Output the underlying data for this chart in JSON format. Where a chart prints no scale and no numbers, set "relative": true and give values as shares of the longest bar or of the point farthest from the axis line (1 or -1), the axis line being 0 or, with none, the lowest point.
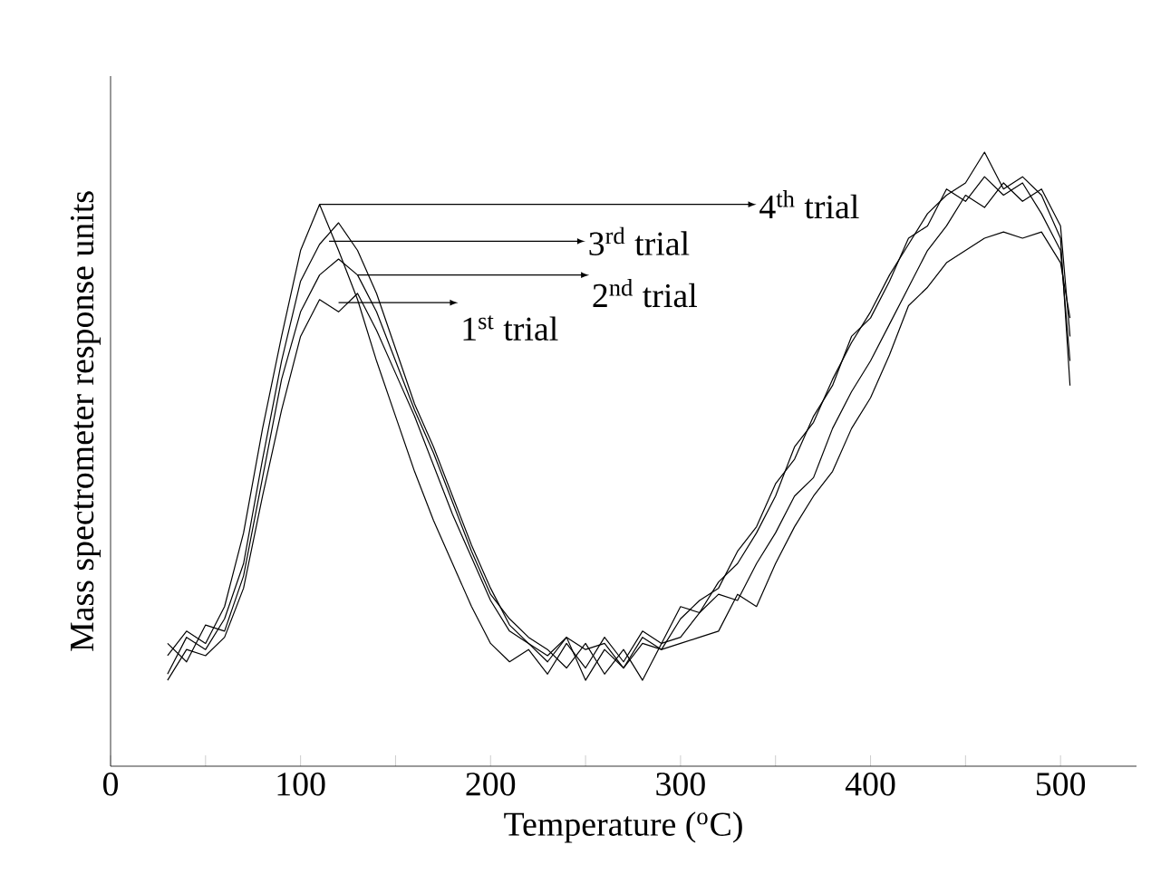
{
  "chart_data": {
    "type": "line",
    "relative": true,
    "xlabel": "Temperature ($^{o}$C)",
    "ylabel": "Mass spectrometer response units",
    "xlim": [
      0,
      540
    ],
    "xticks": [
      0,
      {
        "value": 50,
        "label": null
      },
      100,
      {
        "value": 150,
        "label": null
      },
      200,
      {
        "value": 250,
        "label": null
      },
      300,
      {
        "value": 350,
        "label": null
      },
      400,
      {
        "value": 450,
        "label": null
      },
      500
    ],
    "tick_labels": "x",
    "x": [
      30,
      40,
      50,
      60,
      70,
      80,
      90,
      100,
      110,
      120,
      130,
      140,
      150,
      160,
      170,
      180,
      190,
      200,
      210,
      220,
      230,
      240,
      250,
      260,
      270,
      280,
      290,
      300,
      310,
      320,
      330,
      340,
      350,
      360,
      370,
      380,
      390,
      400,
      410,
      420,
      430,
      440,
      450,
      460,
      470,
      480,
      490,
      500,
      505
    ],
    "series": [
      {
        "color": "#000000",
        "values": [
          0.18,
          0.22,
          0.2,
          0.26,
          0.38,
          0.55,
          0.7,
          0.84,
          0.915,
          0.84,
          0.76,
          0.66,
          0.57,
          0.48,
          0.4,
          0.33,
          0.26,
          0.2,
          0.17,
          0.19,
          0.15,
          0.2,
          0.16,
          0.21,
          0.17,
          0.22,
          0.2,
          0.26,
          0.25,
          0.3,
          0.33,
          0.38,
          0.44,
          0.52,
          0.56,
          0.63,
          0.69,
          0.74,
          0.8,
          0.85,
          0.9,
          0.93,
          0.95,
          1,
          0.94,
          0.96,
          0.93,
          0.86,
          0.62
        ]
      },
      {
        "color": "#000000",
        "values": [
          0.15,
          0.21,
          0.19,
          0.24,
          0.33,
          0.5,
          0.66,
          0.79,
          0.85,
          0.885,
          0.84,
          0.77,
          0.68,
          0.59,
          0.52,
          0.44,
          0.36,
          0.29,
          0.23,
          0.2,
          0.17,
          0.21,
          0.14,
          0.19,
          0.16,
          0.21,
          0.19,
          0.24,
          0.27,
          0.29,
          0.35,
          0.39,
          0.46,
          0.5,
          0.57,
          0.62,
          0.7,
          0.73,
          0.79,
          0.86,
          0.88,
          0.94,
          0.92,
          0.96,
          0.93,
          0.95,
          0.9,
          0.84,
          0.66
        ]
      },
      {
        "color": "#000000",
        "values": [
          0.2,
          0.17,
          0.23,
          0.22,
          0.31,
          0.47,
          0.63,
          0.74,
          0.8,
          0.826,
          0.8,
          0.74,
          0.66,
          0.58,
          0.51,
          0.43,
          0.35,
          0.28,
          0.24,
          0.21,
          0.19,
          0.16,
          0.2,
          0.15,
          0.19,
          0.14,
          0.2,
          0.21,
          0.25,
          0.28,
          0.27,
          0.33,
          0.38,
          0.44,
          0.47,
          0.55,
          0.61,
          0.66,
          0.72,
          0.78,
          0.84,
          0.88,
          0.93,
          0.91,
          0.95,
          0.92,
          0.94,
          0.88,
          0.7
        ]
      },
      {
        "color": "#000000",
        "values": [
          0.14,
          0.19,
          0.18,
          0.21,
          0.29,
          0.44,
          0.58,
          0.7,
          0.76,
          0.74,
          0.77,
          0.71,
          0.64,
          0.57,
          0.49,
          0.41,
          0.34,
          0.27,
          0.22,
          0.2,
          0.18,
          0.21,
          0.19,
          0.2,
          0.16,
          0.2,
          0.19,
          0.2,
          0.21,
          0.22,
          0.28,
          0.26,
          0.33,
          0.39,
          0.44,
          0.48,
          0.55,
          0.6,
          0.67,
          0.75,
          0.78,
          0.82,
          0.84,
          0.86,
          0.87,
          0.86,
          0.87,
          0.82,
          0.73
        ]
      }
    ],
    "annotations": [
      {
        "text": "1$^{st}$ trial",
        "x": 120,
        "y": 0.755
      },
      {
        "text": "2$^{nd}$ trial",
        "x": 130,
        "y": 0.8
      },
      {
        "text": "3$^{rd}$ trial",
        "x": 115,
        "y": 0.855
      },
      {
        "text": "4$^{th}$ trial",
        "x": 110,
        "y": 0.915
      }
    ]
  }
}
